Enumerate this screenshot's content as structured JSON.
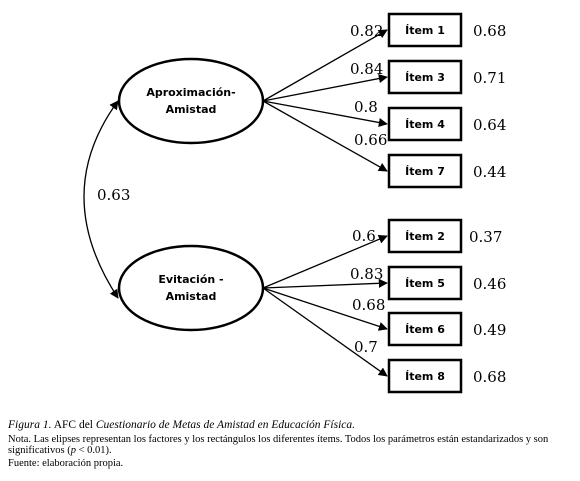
{
  "factors": [
    {
      "id": "aprox",
      "lines": [
        "Aproximación-",
        "Amistad"
      ]
    },
    {
      "id": "evit",
      "lines": [
        "Evitación -",
        "Amistad"
      ]
    }
  ],
  "correlation": "0.63",
  "items": [
    {
      "label": "Ítem 1",
      "loading": "0.82",
      "error": "0.68"
    },
    {
      "label": "Ítem 3",
      "loading": "0.84",
      "error": "0.71"
    },
    {
      "label": "Ítem 4",
      "loading": "0.8",
      "error": "0.64"
    },
    {
      "label": "Ítem 7",
      "loading": "0.66",
      "error": "0.44"
    },
    {
      "label": "Ítem 2",
      "loading": "0.6",
      "error": "0.37"
    },
    {
      "label": "Ítem 5",
      "loading": "0.83",
      "error": "0.46"
    },
    {
      "label": "Ítem 6",
      "loading": "0.68",
      "error": "0.49"
    },
    {
      "label": "Ítem 8",
      "loading": "0.7",
      "error": "0.68"
    }
  ],
  "caption": {
    "figure_label": "Figura 1.",
    "prefix": "AFC del",
    "title": "Cuestionario de Metas de Amistad en Educación Física.",
    "note_part1": "Nota. Las elipses representan los factores y los rectángulos los diferentes ítems. Todos los parámetros están estandarizados y son significativos (",
    "note_p": "p",
    "note_part2": " < 0.01).",
    "source": "Fuente: elaboración propia."
  }
}
